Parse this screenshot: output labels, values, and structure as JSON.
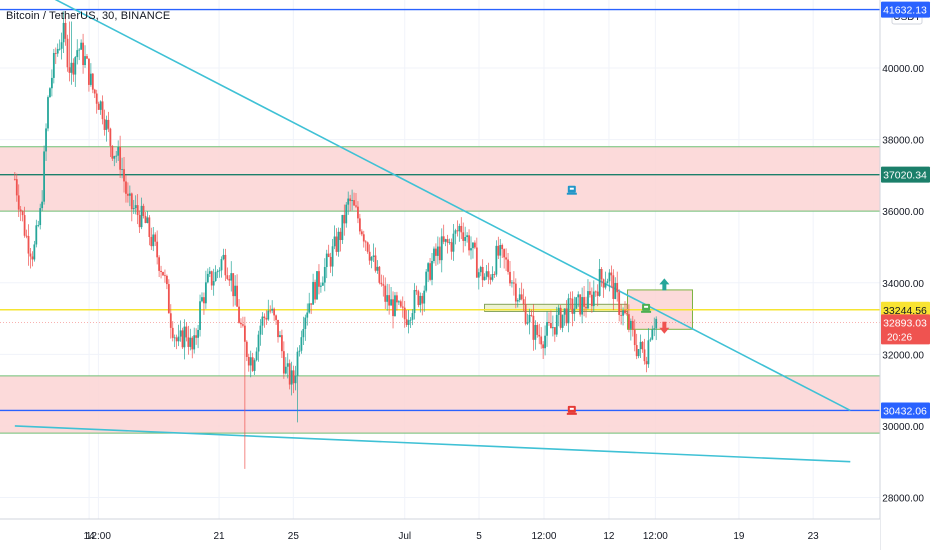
{
  "header": {
    "title": "Bitcoin / TetherUS, 30, BINANCE",
    "currency": "USDT"
  },
  "chart_data": {
    "type": "candlestick",
    "title": "Bitcoin / TetherUS, 30, BINANCE",
    "ylim": [
      27400,
      41900
    ],
    "x_ticks": [
      {
        "label": "14",
        "day": 14
      },
      {
        "label": "12:00",
        "day": 14.5
      },
      {
        "label": "21",
        "day": 21
      },
      {
        "label": "25",
        "day": 25
      },
      {
        "label": "Jul",
        "day": 31
      },
      {
        "label": "5",
        "day": 35
      },
      {
        "label": "12:00",
        "day": 38.5
      },
      {
        "label": "12",
        "day": 42
      },
      {
        "label": "12:00",
        "day": 44.5
      },
      {
        "label": "19",
        "day": 49
      },
      {
        "label": "23",
        "day": 53
      }
    ],
    "y_ticks": [
      28000,
      30000,
      32000,
      34000,
      36000,
      38000,
      40000
    ],
    "y_tick_labels": [
      "28000.00",
      "30000.00",
      "32000.00",
      "34000.00",
      "36000.00",
      "38000.00",
      "40000.00"
    ],
    "price_labels": [
      {
        "value": 41632.13,
        "text": "41632.13",
        "color": "#2962ff"
      },
      {
        "value": 37020.34,
        "text": "37020.34",
        "color": "#1b7f6a"
      },
      {
        "value": 33244.56,
        "text": "33244.56",
        "color": "#f9e432"
      },
      {
        "value": 32893.03,
        "text": "32893.03",
        "countdown": "20:26",
        "color": "#ef5350"
      },
      {
        "value": 30432.06,
        "text": "30432.06",
        "color": "#2962ff"
      }
    ],
    "candle_anchors": [
      [
        10.0,
        36900
      ],
      [
        10.6,
        35300
      ],
      [
        11.0,
        34800
      ],
      [
        11.4,
        36000
      ],
      [
        11.8,
        39200
      ],
      [
        12.2,
        40400
      ],
      [
        12.6,
        41000
      ],
      [
        13.0,
        39900
      ],
      [
        13.4,
        40600
      ],
      [
        13.8,
        40200
      ],
      [
        14.2,
        39400
      ],
      [
        14.7,
        38900
      ],
      [
        15.2,
        37800
      ],
      [
        15.7,
        37400
      ],
      [
        16.1,
        36200
      ],
      [
        16.5,
        36000
      ],
      [
        17.0,
        35700
      ],
      [
        17.5,
        35000
      ],
      [
        18.0,
        34300
      ],
      [
        18.4,
        33000
      ],
      [
        18.8,
        32200
      ],
      [
        19.2,
        32700
      ],
      [
        19.6,
        32000
      ],
      [
        20.0,
        33400
      ],
      [
        20.4,
        34000
      ],
      [
        20.8,
        34200
      ],
      [
        21.2,
        34700
      ],
      [
        21.6,
        34300
      ],
      [
        22.0,
        33200
      ],
      [
        22.4,
        32200
      ],
      [
        22.8,
        31800
      ],
      [
        23.2,
        32800
      ],
      [
        23.7,
        33300
      ],
      [
        24.2,
        32600
      ],
      [
        24.6,
        31500
      ],
      [
        25.0,
        31200
      ],
      [
        25.5,
        33000
      ],
      [
        26.0,
        33700
      ],
      [
        26.5,
        34200
      ],
      [
        27.0,
        34700
      ],
      [
        27.5,
        35300
      ],
      [
        28.0,
        36300
      ],
      [
        28.5,
        35800
      ],
      [
        29.0,
        35100
      ],
      [
        29.5,
        34200
      ],
      [
        30.0,
        33500
      ],
      [
        30.5,
        33300
      ],
      [
        31.0,
        33000
      ],
      [
        31.5,
        33500
      ],
      [
        32.0,
        33800
      ],
      [
        32.5,
        34600
      ],
      [
        33.0,
        35000
      ],
      [
        33.5,
        35100
      ],
      [
        34.0,
        35600
      ],
      [
        34.5,
        35100
      ],
      [
        35.0,
        34300
      ],
      [
        35.5,
        34100
      ],
      [
        36.0,
        34800
      ],
      [
        36.5,
        34500
      ],
      [
        37.0,
        33800
      ],
      [
        37.5,
        33200
      ],
      [
        38.0,
        32600
      ],
      [
        38.5,
        32500
      ],
      [
        39.0,
        32800
      ],
      [
        39.5,
        33100
      ],
      [
        40.0,
        33300
      ],
      [
        40.5,
        33400
      ],
      [
        41.0,
        33500
      ],
      [
        41.5,
        34100
      ],
      [
        42.0,
        34200
      ],
      [
        42.5,
        33400
      ],
      [
        43.0,
        32900
      ],
      [
        43.5,
        32200
      ],
      [
        44.0,
        32000
      ],
      [
        44.3,
        32900
      ],
      [
        44.6,
        33000
      ]
    ],
    "trendlines": [
      {
        "name": "upper-trendline",
        "from": [
          10.0,
          42500
        ],
        "to": [
          55.0,
          30432
        ],
        "color": "#3fc1d5"
      },
      {
        "name": "lower-trendline",
        "from": [
          10.0,
          30000
        ],
        "to": [
          55.0,
          29000
        ],
        "color": "#3fc1d5"
      }
    ],
    "zones": [
      {
        "name": "upper-resistance-zone",
        "from": 36000,
        "to": 37800
      },
      {
        "name": "lower-support-zone",
        "from": 29800,
        "to": 31400
      }
    ],
    "horizontal_lines": [
      {
        "name": "line-41632",
        "value": 41632.13,
        "color": "#2962ff"
      },
      {
        "name": "line-37020",
        "value": 37020.34,
        "color": "#1b7f6a"
      },
      {
        "name": "line-33244",
        "value": 33244.56,
        "color": "#f5e432"
      },
      {
        "name": "line-30432",
        "value": 30432.06,
        "color": "#2962ff"
      }
    ],
    "consolidation_box": {
      "x0": 35.3,
      "x1": 43.0,
      "y0": 33200,
      "y1": 33400
    },
    "trade_box": {
      "x0": 43.0,
      "x1": 46.5,
      "y0": 32700,
      "y1": 33800
    },
    "markers": [
      {
        "name": "cup-marker-upper",
        "day": 40.0,
        "value": 36600,
        "color": "#2196c8"
      },
      {
        "name": "cup-marker-lower",
        "day": 40.0,
        "value": 30450,
        "color": "#e53935"
      },
      {
        "name": "cup-marker-green",
        "day": 44.0,
        "value": 33300,
        "color": "#4caf50"
      }
    ],
    "arrows": [
      {
        "name": "up-arrow",
        "day": 44.5,
        "value": 33900,
        "direction": "up",
        "color": "#26a69a"
      },
      {
        "name": "down-arrow",
        "day": 44.5,
        "value": 32800,
        "direction": "down",
        "color": "#ef5350"
      }
    ],
    "colors": {
      "up": "#26a69a",
      "down": "#ef5350",
      "zone_fill": "#fbd4d4",
      "zone_border": "#6fbf73",
      "grid": "#f0f3fa"
    }
  }
}
